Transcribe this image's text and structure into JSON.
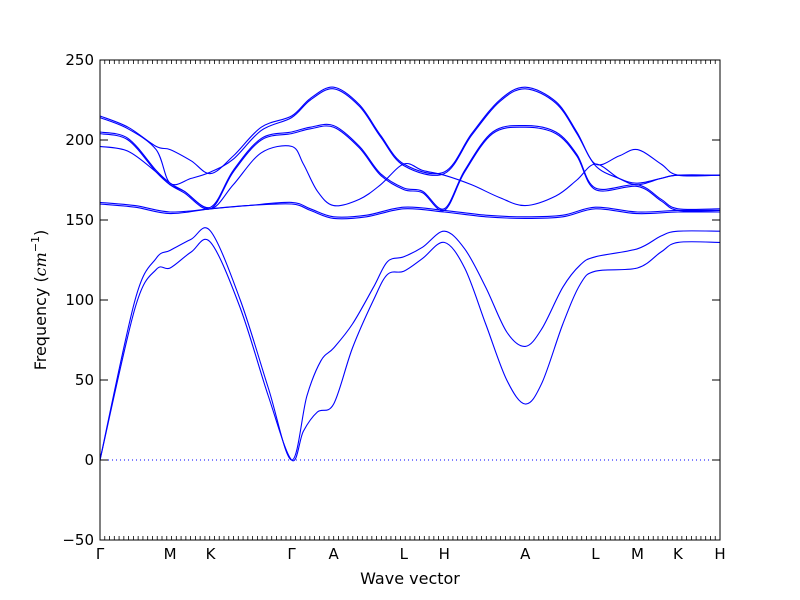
{
  "chart_data": {
    "type": "line",
    "xlabel": "Wave vector",
    "ylabel": "Frequency",
    "ylabel_unit": "cm",
    "ylabel_unit_exp": "−1",
    "ylim": [
      -50,
      250
    ],
    "yticks": [
      -50,
      0,
      50,
      100,
      150,
      200,
      250
    ],
    "xticks": [
      {
        "label": "Γ",
        "pos": 0
      },
      {
        "label": "M",
        "pos": 1
      },
      {
        "label": "K",
        "pos": 1.577
      },
      {
        "label": "Γ",
        "pos": 2.732
      },
      {
        "label": "A",
        "pos": 3.332
      },
      {
        "label": "L",
        "pos": 4.332
      },
      {
        "label": "H",
        "pos": 4.909
      },
      {
        "label": "A",
        "pos": 6.064
      },
      {
        "label": "L",
        "pos": 7.064
      },
      {
        "label": "M",
        "pos": 7.664
      },
      {
        "label": "K",
        "pos": 8.241
      },
      {
        "label": "H",
        "pos": 8.841
      }
    ],
    "zero_line": {
      "y": 0,
      "style": "dotted"
    },
    "line_color": "#0000ff",
    "grid": false,
    "series": [
      {
        "points": [
          [
            0,
            0
          ],
          [
            0.5,
            95
          ],
          [
            0.8,
            119
          ],
          [
            1,
            120
          ],
          [
            1.3,
            130
          ],
          [
            1.577,
            136
          ],
          [
            2.0,
            95
          ],
          [
            2.4,
            40
          ],
          [
            2.732,
            0
          ],
          [
            2.9,
            18
          ],
          [
            3.1,
            30
          ],
          [
            3.332,
            35
          ],
          [
            3.6,
            70
          ],
          [
            3.9,
            100
          ],
          [
            4.1,
            116
          ],
          [
            4.332,
            118
          ],
          [
            4.6,
            126
          ],
          [
            4.909,
            136
          ],
          [
            5.2,
            120
          ],
          [
            5.5,
            85
          ],
          [
            5.8,
            50
          ],
          [
            6.064,
            35
          ],
          [
            6.3,
            48
          ],
          [
            6.6,
            85
          ],
          [
            6.85,
            110
          ],
          [
            7.064,
            118
          ],
          [
            7.664,
            120
          ],
          [
            8.0,
            130
          ],
          [
            8.241,
            136
          ],
          [
            8.841,
            136
          ]
        ]
      },
      {
        "points": [
          [
            0,
            0
          ],
          [
            0.5,
            100
          ],
          [
            0.8,
            126
          ],
          [
            1,
            131
          ],
          [
            1.3,
            138
          ],
          [
            1.577,
            143
          ],
          [
            2.0,
            100
          ],
          [
            2.4,
            45
          ],
          [
            2.732,
            0
          ],
          [
            2.95,
            40
          ],
          [
            3.15,
            62
          ],
          [
            3.332,
            70
          ],
          [
            3.6,
            85
          ],
          [
            3.9,
            108
          ],
          [
            4.1,
            124
          ],
          [
            4.332,
            127
          ],
          [
            4.6,
            133
          ],
          [
            4.909,
            143
          ],
          [
            5.2,
            132
          ],
          [
            5.5,
            108
          ],
          [
            5.8,
            80
          ],
          [
            6.064,
            71
          ],
          [
            6.3,
            82
          ],
          [
            6.6,
            108
          ],
          [
            6.85,
            122
          ],
          [
            7.064,
            127
          ],
          [
            7.664,
            132
          ],
          [
            8.0,
            140
          ],
          [
            8.241,
            143
          ],
          [
            8.841,
            143
          ]
        ]
      },
      {
        "points": [
          [
            0,
            161
          ],
          [
            0.5,
            159
          ],
          [
            1,
            155
          ],
          [
            1.577,
            157
          ],
          [
            2.1,
            159
          ],
          [
            2.732,
            161
          ],
          [
            3.0,
            157
          ],
          [
            3.332,
            152
          ],
          [
            3.8,
            153
          ],
          [
            4.332,
            158
          ],
          [
            4.909,
            156
          ],
          [
            5.5,
            153
          ],
          [
            6.064,
            152
          ],
          [
            6.6,
            153
          ],
          [
            7.064,
            158
          ],
          [
            7.664,
            155
          ],
          [
            8.241,
            156
          ],
          [
            8.841,
            156
          ]
        ]
      },
      {
        "points": [
          [
            0,
            160
          ],
          [
            0.5,
            158
          ],
          [
            1,
            154
          ],
          [
            1.577,
            157
          ],
          [
            2.1,
            159
          ],
          [
            2.732,
            160
          ],
          [
            3.0,
            156
          ],
          [
            3.332,
            151
          ],
          [
            3.8,
            152
          ],
          [
            4.332,
            157
          ],
          [
            4.909,
            155
          ],
          [
            5.5,
            152
          ],
          [
            6.064,
            151
          ],
          [
            6.6,
            152
          ],
          [
            7.064,
            157
          ],
          [
            7.664,
            154
          ],
          [
            8.241,
            155
          ],
          [
            8.841,
            155
          ]
        ]
      },
      {
        "points": [
          [
            0,
            196
          ],
          [
            0.4,
            193
          ],
          [
            0.8,
            180
          ],
          [
            1,
            172
          ],
          [
            1.2,
            168
          ],
          [
            1.577,
            157
          ],
          [
            1.9,
            172
          ],
          [
            2.3,
            192
          ],
          [
            2.732,
            196
          ],
          [
            2.9,
            185
          ],
          [
            3.1,
            168
          ],
          [
            3.332,
            159
          ],
          [
            3.7,
            163
          ],
          [
            4.0,
            172
          ],
          [
            4.332,
            185
          ],
          [
            4.6,
            181
          ],
          [
            4.909,
            178
          ],
          [
            5.3,
            172
          ],
          [
            5.7,
            164
          ],
          [
            6.064,
            159
          ],
          [
            6.5,
            165
          ],
          [
            6.8,
            175
          ],
          [
            7.064,
            185
          ],
          [
            7.4,
            176
          ],
          [
            7.664,
            172
          ],
          [
            8.0,
            176
          ],
          [
            8.241,
            178
          ],
          [
            8.841,
            178
          ]
        ]
      },
      {
        "points": [
          [
            0,
            204
          ],
          [
            0.4,
            200
          ],
          [
            0.8,
            180
          ],
          [
            1,
            172
          ],
          [
            1.2,
            167
          ],
          [
            1.577,
            157
          ],
          [
            1.9,
            180
          ],
          [
            2.3,
            200
          ],
          [
            2.732,
            204
          ],
          [
            3.0,
            207
          ],
          [
            3.332,
            208
          ],
          [
            3.7,
            195
          ],
          [
            4.0,
            178
          ],
          [
            4.332,
            169
          ],
          [
            4.6,
            167
          ],
          [
            4.909,
            156
          ],
          [
            5.2,
            180
          ],
          [
            5.6,
            204
          ],
          [
            6.064,
            208
          ],
          [
            6.5,
            204
          ],
          [
            6.8,
            190
          ],
          [
            7.064,
            169
          ],
          [
            7.664,
            171
          ],
          [
            8.0,
            162
          ],
          [
            8.241,
            156
          ],
          [
            8.841,
            156
          ]
        ]
      },
      {
        "points": [
          [
            0,
            205
          ],
          [
            0.4,
            201
          ],
          [
            0.8,
            181
          ],
          [
            1,
            173
          ],
          [
            1.2,
            168
          ],
          [
            1.577,
            158
          ],
          [
            1.9,
            181
          ],
          [
            2.3,
            201
          ],
          [
            2.732,
            205
          ],
          [
            3.0,
            208
          ],
          [
            3.332,
            209
          ],
          [
            3.7,
            196
          ],
          [
            4.0,
            179
          ],
          [
            4.332,
            170
          ],
          [
            4.6,
            168
          ],
          [
            4.909,
            157
          ],
          [
            5.2,
            181
          ],
          [
            5.6,
            205
          ],
          [
            6.064,
            209
          ],
          [
            6.5,
            205
          ],
          [
            6.8,
            191
          ],
          [
            7.064,
            170
          ],
          [
            7.664,
            172
          ],
          [
            8.0,
            163
          ],
          [
            8.241,
            157
          ],
          [
            8.841,
            157
          ]
        ]
      },
      {
        "points": [
          [
            0,
            215
          ],
          [
            0.4,
            208
          ],
          [
            0.8,
            196
          ],
          [
            1,
            194
          ],
          [
            1.3,
            187
          ],
          [
            1.577,
            179
          ],
          [
            1.9,
            190
          ],
          [
            2.3,
            208
          ],
          [
            2.732,
            215
          ],
          [
            3.0,
            226
          ],
          [
            3.332,
            233
          ],
          [
            3.7,
            222
          ],
          [
            4.0,
            203
          ],
          [
            4.332,
            185
          ],
          [
            4.909,
            180
          ],
          [
            5.3,
            204
          ],
          [
            5.7,
            225
          ],
          [
            6.064,
            233
          ],
          [
            6.5,
            224
          ],
          [
            6.8,
            205
          ],
          [
            7.064,
            185
          ],
          [
            7.4,
            190
          ],
          [
            7.664,
            194
          ],
          [
            8.0,
            185
          ],
          [
            8.241,
            178
          ],
          [
            8.841,
            178
          ]
        ]
      },
      {
        "points": [
          [
            0,
            214
          ],
          [
            0.4,
            207
          ],
          [
            0.8,
            194
          ],
          [
            1,
            173
          ],
          [
            1.3,
            176
          ],
          [
            1.577,
            180
          ],
          [
            1.9,
            188
          ],
          [
            2.3,
            206
          ],
          [
            2.732,
            214
          ],
          [
            3.0,
            225
          ],
          [
            3.332,
            232
          ],
          [
            3.7,
            221
          ],
          [
            4.0,
            202
          ],
          [
            4.332,
            184
          ],
          [
            4.909,
            179
          ],
          [
            5.3,
            203
          ],
          [
            5.7,
            224
          ],
          [
            6.064,
            232
          ],
          [
            6.5,
            223
          ],
          [
            6.8,
            204
          ],
          [
            7.064,
            184
          ],
          [
            7.4,
            176
          ],
          [
            7.664,
            173
          ],
          [
            8.0,
            176
          ],
          [
            8.241,
            178
          ],
          [
            8.841,
            178
          ]
        ]
      }
    ]
  }
}
